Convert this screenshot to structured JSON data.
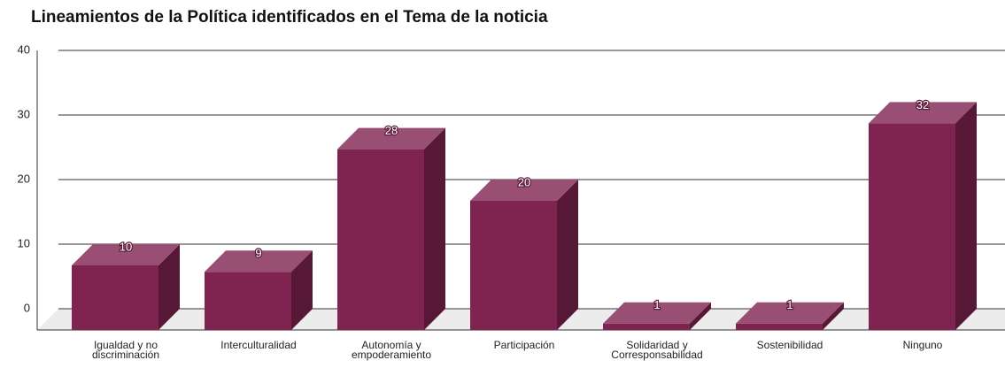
{
  "chart_data": {
    "type": "bar3d",
    "title": "Lineamientos de la Política identificados en el Tema de la noticia",
    "categories": [
      "Igualdad y no discriminación",
      "Interculturalidad",
      "Autonomía y empoderamiento",
      "Participación",
      "Solidaridad y Corresponsabilidad",
      "Sostenibilidad",
      "Ninguno"
    ],
    "values": [
      10,
      9,
      28,
      20,
      1,
      1,
      32
    ],
    "color": "#7f2350",
    "ylim": [
      0,
      40
    ],
    "yticks": [
      0,
      10,
      20,
      30,
      40
    ],
    "grid": true
  }
}
